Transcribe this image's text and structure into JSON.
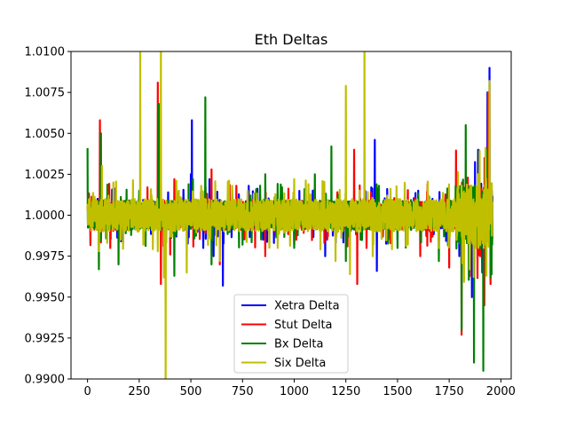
{
  "chart_data": {
    "type": "line",
    "title": "Eth Deltas",
    "xlabel": "",
    "ylabel": "",
    "xlim": [
      -80,
      2050
    ],
    "ylim": [
      0.99,
      1.01
    ],
    "xticks": [
      0,
      250,
      500,
      750,
      1000,
      1250,
      1500,
      1750,
      2000
    ],
    "yticks": [
      0.99,
      0.9925,
      0.995,
      0.9975,
      1.0,
      1.0025,
      1.005,
      1.0075,
      1.01
    ],
    "xtick_labels": [
      "0",
      "250",
      "500",
      "750",
      "1000",
      "1250",
      "1500",
      "1750",
      "2000"
    ],
    "ytick_labels": [
      "0.9900",
      "0.9925",
      "0.9950",
      "0.9975",
      "1.0000",
      "1.0025",
      "1.0050",
      "1.0075",
      "1.0100"
    ],
    "grid": false,
    "legend_position": "lower-center",
    "n_points": 1960,
    "series": [
      {
        "name": "Xetra Delta",
        "color": "#0000ff",
        "base_amp": 0.0008,
        "peaks": [
          [
            0,
            1.0005
          ],
          [
            55,
            0.9982
          ],
          [
            65,
            1.0015
          ],
          [
            160,
            0.9985
          ],
          [
            200,
            1.0009
          ],
          [
            355,
            0.9975
          ],
          [
            390,
            1.0014
          ],
          [
            430,
            0.9987
          ],
          [
            500,
            1.0025
          ],
          [
            505,
            1.0058
          ],
          [
            560,
            0.998
          ],
          [
            590,
            1.0022
          ],
          [
            610,
            0.9975
          ],
          [
            655,
            0.9957
          ],
          [
            700,
            1.0012
          ],
          [
            780,
            1.0018
          ],
          [
            850,
            0.9985
          ],
          [
            920,
            1.0008
          ],
          [
            1000,
            0.9982
          ],
          [
            1090,
            1.0015
          ],
          [
            1150,
            0.9975
          ],
          [
            1300,
            0.999
          ],
          [
            1390,
            1.0046
          ],
          [
            1400,
            0.9966
          ],
          [
            1450,
            1.0016
          ],
          [
            1500,
            0.9985
          ],
          [
            1600,
            1.0015
          ],
          [
            1700,
            0.998
          ],
          [
            1810,
            1.0015
          ],
          [
            1860,
            0.995
          ],
          [
            1890,
            1.004
          ],
          [
            1910,
            0.9965
          ],
          [
            1935,
            1.0075
          ],
          [
            1945,
            1.009
          ],
          [
            1960,
            0.997
          ]
        ]
      },
      {
        "name": "Stut Delta",
        "color": "#ff0000",
        "base_amp": 0.0009,
        "peaks": [
          [
            0,
            1.0003
          ],
          [
            60,
            1.0058
          ],
          [
            110,
            0.998
          ],
          [
            200,
            1.0007
          ],
          [
            340,
            1.0081
          ],
          [
            355,
            0.9958
          ],
          [
            400,
            0.9976
          ],
          [
            420,
            1.0022
          ],
          [
            600,
            1.0028
          ],
          [
            640,
            0.997
          ],
          [
            720,
            1.0018
          ],
          [
            860,
            0.9975
          ],
          [
            1010,
            0.9985
          ],
          [
            1160,
            0.9985
          ],
          [
            1290,
            1.004
          ],
          [
            1305,
            0.9958
          ],
          [
            1350,
            0.998
          ],
          [
            1510,
            1.0008
          ],
          [
            1610,
            0.9975
          ],
          [
            1750,
            0.9968
          ],
          [
            1800,
            1.0015
          ],
          [
            1810,
            0.9927
          ],
          [
            1840,
            1.0023
          ],
          [
            1900,
            0.9975
          ],
          [
            1920,
            0.9945
          ],
          [
            1938,
            1.0075
          ],
          [
            1950,
            0.9958
          ]
        ]
      },
      {
        "name": "Bx Delta",
        "color": "#008000",
        "base_amp": 0.0009,
        "peaks": [
          [
            0,
            1.0041
          ],
          [
            55,
            0.9967
          ],
          [
            65,
            1.005
          ],
          [
            150,
            0.997
          ],
          [
            250,
            1.0015
          ],
          [
            345,
            1.0068
          ],
          [
            380,
            0.9983
          ],
          [
            420,
            0.9963
          ],
          [
            510,
            1.0022
          ],
          [
            570,
            1.0072
          ],
          [
            600,
            0.997
          ],
          [
            700,
            1.0015
          ],
          [
            750,
            0.9982
          ],
          [
            860,
            1.0025
          ],
          [
            1000,
            0.998
          ],
          [
            1100,
            1.0025
          ],
          [
            1180,
            1.0042
          ],
          [
            1250,
            0.9972
          ],
          [
            1410,
            1.0018
          ],
          [
            1500,
            0.998
          ],
          [
            1650,
            1.0008
          ],
          [
            1700,
            0.9972
          ],
          [
            1800,
            1.0015
          ],
          [
            1810,
            0.993
          ],
          [
            1830,
            1.0055
          ],
          [
            1870,
            0.991
          ],
          [
            1900,
            0.998
          ],
          [
            1915,
            0.9905
          ],
          [
            1930,
            1.004
          ],
          [
            1950,
            0.9962
          ]
        ]
      },
      {
        "name": "Six Delta",
        "color": "#bfbf00",
        "base_amp": 0.001,
        "peaks": [
          [
            0,
            1.0007
          ],
          [
            55,
            0.9978
          ],
          [
            70,
            1.003
          ],
          [
            160,
            0.9985
          ],
          [
            255,
            1.0103
          ],
          [
            270,
            0.9982
          ],
          [
            340,
            0.9978
          ],
          [
            355,
            1.0102
          ],
          [
            370,
            0.9962
          ],
          [
            378,
            0.9895
          ],
          [
            430,
            1.0021
          ],
          [
            480,
            0.9965
          ],
          [
            550,
            1.0018
          ],
          [
            640,
            0.9972
          ],
          [
            700,
            1.0018
          ],
          [
            920,
            0.998
          ],
          [
            1000,
            1.0022
          ],
          [
            1200,
            0.9972
          ],
          [
            1250,
            1.0079
          ],
          [
            1270,
            0.9964
          ],
          [
            1340,
            1.0102
          ],
          [
            1380,
            0.9975
          ],
          [
            1450,
            1.0012
          ],
          [
            1550,
            0.9982
          ],
          [
            1650,
            1.0012
          ],
          [
            1700,
            0.998
          ],
          [
            1810,
            1.0018
          ],
          [
            1850,
            0.9972
          ],
          [
            1890,
            1.0025
          ],
          [
            1930,
            0.9963
          ],
          [
            1945,
            1.0082
          ],
          [
            1960,
            0.9955
          ]
        ]
      }
    ]
  }
}
